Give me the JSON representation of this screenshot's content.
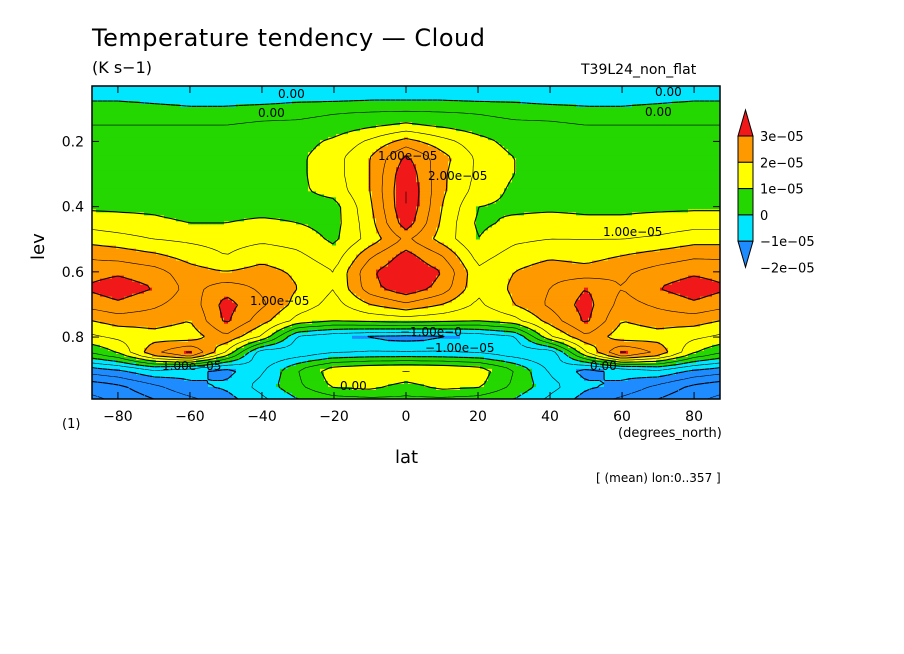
{
  "figure": {
    "title": "Temperature tendency — Cloud",
    "units": "(K s−1)",
    "experiment": "T39L24_non_flat",
    "x_unit": "(degrees_north)",
    "contour_label": "(1)",
    "averaging_note": "[ (mean) lon:0..357 ]"
  },
  "chart_data": {
    "type": "heatmap",
    "title": "Temperature tendency — Cloud",
    "xlabel": "lat",
    "ylabel": "lev",
    "xlim": [
      -87.2,
      87.2
    ],
    "ylim": [
      0.99,
      0.03
    ],
    "x_ticks": [
      -80,
      -60,
      -40,
      -20,
      0,
      20,
      40,
      60,
      80
    ],
    "x_tick_labels": [
      "−80",
      "−60",
      "−40",
      "−20",
      "0",
      "20",
      "40",
      "60",
      "80"
    ],
    "y_ticks": [
      0.2,
      0.4,
      0.6,
      0.8
    ],
    "y_tick_labels": [
      "0.2",
      "0.4",
      "0.6",
      "0.8"
    ],
    "colorbar": {
      "levels": [
        -2e-05,
        -1e-05,
        0,
        1e-05,
        2e-05,
        3e-05
      ],
      "labels": [
        "−2e−05",
        "−1e−05",
        "0",
        "1e−05",
        "2e−05",
        "3e−05"
      ],
      "colors": [
        "#1e8cff",
        "#00e6ff",
        "#24d700",
        "#ffff00",
        "#ff9900",
        "#f01818"
      ]
    },
    "x": [
      -87.2,
      -80,
      -70,
      -60,
      -50,
      -40,
      -30,
      -20,
      -10,
      0,
      10,
      20,
      30,
      40,
      50,
      60,
      70,
      80,
      87.2
    ],
    "y": [
      0.03,
      0.06,
      0.1,
      0.15,
      0.2,
      0.25,
      0.3,
      0.35,
      0.4,
      0.45,
      0.5,
      0.55,
      0.6,
      0.65,
      0.7,
      0.75,
      0.8,
      0.85,
      0.9,
      0.95,
      0.99
    ],
    "z": [
      [
        -5e-06,
        -5e-06,
        -5e-06,
        -5e-06,
        -5e-06,
        -5e-06,
        -5e-06,
        -5e-06,
        -5e-06,
        -5e-06,
        -5e-06,
        -5e-06,
        -5e-06,
        -5e-06,
        -5e-06,
        -5e-06,
        -5e-06,
        -5e-06,
        -5e-06
      ],
      [
        -2e-06,
        -2e-06,
        -3e-06,
        -4e-06,
        -4e-06,
        -4e-06,
        -3e-06,
        -3e-06,
        -2e-06,
        -2e-06,
        -2e-06,
        -3e-06,
        -3e-06,
        -4e-06,
        -4e-06,
        -4e-06,
        -3e-06,
        -2e-06,
        -2e-06
      ],
      [
        3e-06,
        3e-06,
        2e-06,
        1e-06,
        1e-06,
        2e-06,
        3e-06,
        4e-06,
        4e-06,
        4e-06,
        4e-06,
        4e-06,
        3e-06,
        2e-06,
        1e-06,
        1e-06,
        2e-06,
        3e-06,
        3e-06
      ],
      [
        5e-06,
        5e-06,
        5e-06,
        5e-06,
        5e-06,
        6e-06,
        6e-06,
        7e-06,
        9e-06,
        1.1e-05,
        9e-06,
        7e-06,
        6e-06,
        6e-06,
        5e-06,
        5e-06,
        5e-06,
        5e-06,
        5e-06
      ],
      [
        6e-06,
        6e-06,
        6e-06,
        6e-06,
        6e-06,
        7e-06,
        8e-06,
        1.1e-05,
        1.6e-05,
        2.2e-05,
        1.7e-05,
        1.2e-05,
        8e-06,
        7e-06,
        6e-06,
        6e-06,
        6e-06,
        6e-06,
        6e-06
      ],
      [
        7e-06,
        7e-06,
        7e-06,
        7e-06,
        7e-06,
        8e-06,
        9e-06,
        1.3e-05,
        2e-05,
        3.1e-05,
        2.2e-05,
        1.4e-05,
        1e-05,
        8e-06,
        7e-06,
        7e-06,
        7e-06,
        7e-06,
        7e-06
      ],
      [
        7e-06,
        7e-06,
        7e-06,
        7e-06,
        7e-06,
        8e-06,
        9e-06,
        1.3e-05,
        2e-05,
        3.4e-05,
        2.1e-05,
        1.4e-05,
        1e-05,
        8e-06,
        8e-06,
        7e-06,
        7e-06,
        7e-06,
        7e-06
      ],
      [
        8e-06,
        8e-06,
        8e-06,
        7e-06,
        7e-06,
        8e-06,
        9e-06,
        1.2e-05,
        2e-05,
        3.5e-05,
        2.1e-05,
        1.3e-05,
        9e-06,
        8e-06,
        8e-06,
        8e-06,
        8e-06,
        8e-06,
        8e-06
      ],
      [
        9e-06,
        9e-06,
        9e-06,
        8e-06,
        8e-06,
        8e-06,
        8e-06,
        8e-06,
        1.9e-05,
        3.5e-05,
        2e-05,
        1e-05,
        9e-06,
        9e-06,
        9e-06,
        9e-06,
        9e-06,
        9e-06,
        9e-06
      ],
      [
        1.3e-05,
        1.2e-05,
        1.1e-05,
        1e-05,
        1e-05,
        1.1e-05,
        1e-05,
        8e-06,
        1.8e-05,
        3.3e-05,
        1.9e-05,
        9e-06,
        1.1e-05,
        1.2e-05,
        1.1e-05,
        1.1e-05,
        1.2e-05,
        1.3e-05,
        1.3e-05
      ],
      [
        1.8e-05,
        1.7e-05,
        1.5e-05,
        1.4e-05,
        1.3e-05,
        1.4e-05,
        1.3e-05,
        9e-06,
        1.7e-05,
        2.6e-05,
        1.8e-05,
        1e-05,
        1.4e-05,
        1.5e-05,
        1.5e-05,
        1.5e-05,
        1.6e-05,
        1.8e-05,
        1.8e-05
      ],
      [
        2.4e-05,
        2.3e-05,
        2.1e-05,
        1.8e-05,
        1.5e-05,
        1.8e-05,
        1.6e-05,
        1.2e-05,
        2.4e-05,
        3.2e-05,
        2.5e-05,
        1.3e-05,
        1.7e-05,
        1.9e-05,
        1.8e-05,
        2e-05,
        2.2e-05,
        2.4e-05,
        2.4e-05
      ],
      [
        2.8e-05,
        2.9e-05,
        2.7e-05,
        2.2e-05,
        2e-05,
        2.2e-05,
        1.9e-05,
        1.5e-05,
        2.9e-05,
        3.5e-05,
        3e-05,
        1.6e-05,
        2e-05,
        2.3e-05,
        2.2e-05,
        2.4e-05,
        2.7e-05,
        2.9e-05,
        2.8e-05
      ],
      [
        3.1e-05,
        3.3e-05,
        3e-05,
        2.3e-05,
        2.8e-05,
        2.4e-05,
        2e-05,
        1.5e-05,
        2.8e-05,
        3.4e-05,
        2.8e-05,
        1.6e-05,
        2.1e-05,
        2.5e-05,
        3e-05,
        2.5e-05,
        3e-05,
        3.3e-05,
        3.1e-05
      ],
      [
        2.7e-05,
        2.9e-05,
        2.6e-05,
        2.2e-05,
        3.2e-05,
        2.6e-05,
        1.8e-05,
        1.3e-05,
        2e-05,
        2.4e-05,
        2e-05,
        1.4e-05,
        2e-05,
        2.6e-05,
        3.2e-05,
        2.3e-05,
        2.6e-05,
        2.9e-05,
        2.7e-05
      ],
      [
        2e-05,
        2.2e-05,
        2.2e-05,
        2e-05,
        3.1e-05,
        2.2e-05,
        1.3e-05,
        1e-05,
        1.1e-05,
        1.2e-05,
        1.1e-05,
        1e-05,
        1.3e-05,
        2.2e-05,
        3.1e-05,
        2e-05,
        2.2e-05,
        2.2e-05,
        2e-05
      ],
      [
        1.4e-05,
        1.6e-05,
        1.8e-05,
        1.7e-05,
        2.4e-05,
        1.4e-05,
        -6e-06,
        -9e-06,
        -1.1e-05,
        -1.2e-05,
        -1.1e-05,
        -9e-06,
        -6e-06,
        1.4e-05,
        2.4e-05,
        1.7e-05,
        1.8e-05,
        1.6e-05,
        1.4e-05
      ],
      [
        5e-06,
        1e-05,
        2.4e-05,
        3.2e-05,
        1.4e-05,
        -1e-05,
        -8e-06,
        -5e-06,
        -4e-06,
        -4e-06,
        -4e-06,
        -5e-06,
        -8e-06,
        -1e-05,
        1.4e-05,
        3.2e-05,
        2.4e-05,
        1e-05,
        5e-06
      ],
      [
        -1.2e-05,
        -1e-05,
        -5e-06,
        -8e-06,
        -1.2e-05,
        -6e-06,
        5e-06,
        1.3e-05,
        1.5e-05,
        1.6e-05,
        1.5e-05,
        1.3e-05,
        5e-06,
        -6e-06,
        -1.2e-05,
        -8e-06,
        -5e-06,
        -1e-05,
        -1.2e-05
      ],
      [
        -2.3e-05,
        -2.1e-05,
        -1.6e-05,
        -1.1e-05,
        -9e-06,
        -3e-06,
        4e-06,
        1.1e-05,
        1.2e-05,
        8e-06,
        1.2e-05,
        1.1e-05,
        4e-06,
        -3e-06,
        -9e-06,
        -1.1e-05,
        -1.6e-05,
        -2.1e-05,
        -2.3e-05
      ],
      [
        -2.6e-05,
        -2.4e-05,
        -2e-05,
        -1.6e-05,
        -1.2e-05,
        -6e-06,
        0.0,
        3e-06,
        4e-06,
        4e-06,
        4e-06,
        3e-06,
        0.0,
        -6e-06,
        -1.2e-05,
        -1.6e-05,
        -2e-05,
        -2.4e-05,
        -2.6e-05
      ]
    ],
    "contour_labels": [
      "0.00",
      "0.00",
      "0.00",
      "0.00",
      "0.00",
      "0.00",
      "1.00e−05",
      "2.00e−05",
      "1.00e−05",
      "1.00e−05",
      "−1.00e−0",
      "−1.00e−05",
      "1.00e−05"
    ],
    "grid": false,
    "legend_position": "right"
  }
}
